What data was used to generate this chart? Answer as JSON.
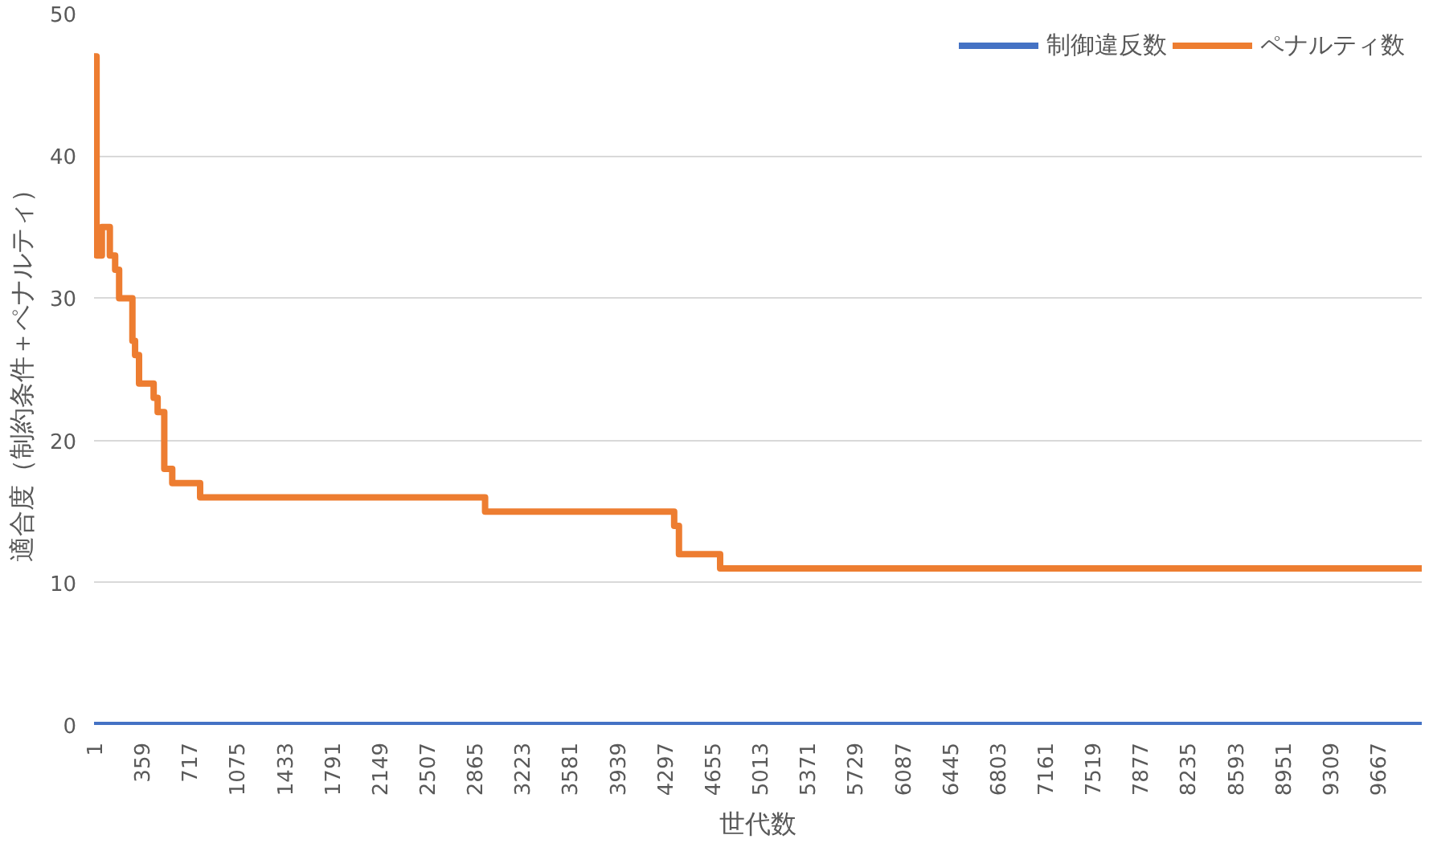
{
  "chart_data": {
    "type": "step",
    "xlabel": "世代数",
    "ylabel": "適合度（制約条件＋ペナルティ）",
    "xlim": [
      1,
      10000
    ],
    "ylim": [
      0,
      50
    ],
    "xticks": [
      1,
      359,
      717,
      1075,
      1433,
      1791,
      2149,
      2507,
      2865,
      3223,
      3581,
      3939,
      4297,
      4655,
      5013,
      5371,
      5729,
      6087,
      6445,
      6803,
      7161,
      7519,
      7877,
      8235,
      8593,
      8951,
      9309,
      9667
    ],
    "yticks": [
      0,
      10,
      20,
      30,
      40,
      50
    ],
    "grid": "y",
    "legend": "top right",
    "series": [
      {
        "name": "制御違反数",
        "color": "#4472c4",
        "x": [
          1,
          10000
        ],
        "values": [
          0,
          0
        ]
      },
      {
        "name": "ペナルティ数",
        "color": "#ed7d31",
        "x": [
          1,
          20,
          60,
          120,
          160,
          190,
          290,
          310,
          340,
          450,
          480,
          530,
          590,
          800,
          2946,
          4370,
          4406,
          4716,
          10000
        ],
        "values": [
          47,
          33,
          35,
          33,
          32,
          30,
          27,
          26,
          24,
          23,
          22,
          18,
          17,
          16,
          15,
          14,
          12,
          11,
          11
        ]
      }
    ]
  }
}
